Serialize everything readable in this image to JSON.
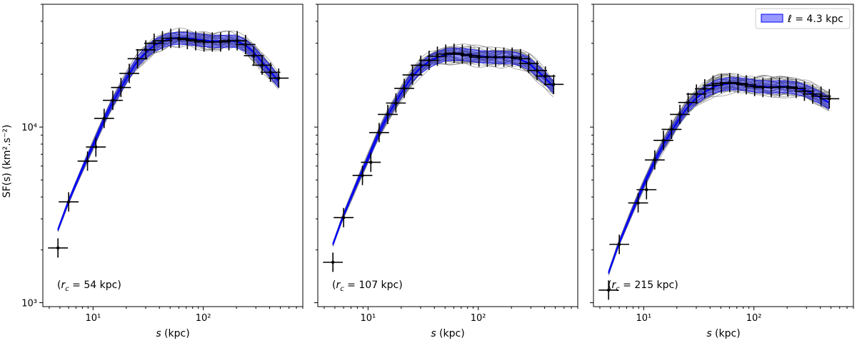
{
  "figure": {
    "ylabel": "SF(s) (km².s⁻²)",
    "legend": {
      "label": "ℓ = 4.3 kpc",
      "color": "#0000ff",
      "location": "top-right"
    },
    "colors": {
      "model": "#0000ff",
      "band": "#0000ff",
      "realizations": "#808080",
      "points": "#000000"
    }
  },
  "chart_data": [
    {
      "type": "line",
      "panel": "left",
      "xscale": "log",
      "yscale": "log",
      "xlim": [
        3.5,
        800
      ],
      "ylim": [
        950,
        50000
      ],
      "xlabel": "s (kpc)",
      "ylabel": "SF(s) (km².s⁻²)",
      "xticks": [
        "10¹",
        "10²"
      ],
      "yticks": [
        "10³",
        "10⁴"
      ],
      "annotation": "(r_c = 54 kpc)",
      "annotation_value": "54 kpc",
      "data_points": {
        "x": [
          4.8,
          6.0,
          8.9,
          10.6,
          12.6,
          15.1,
          17.9,
          21.3,
          25.3,
          30.1,
          35.8,
          42.6,
          50.7,
          60.3,
          71.7,
          85.3,
          101.5,
          120.7,
          143.6,
          170.8,
          203.1,
          241.6,
          287.4,
          341.8,
          406.6,
          483.6
        ],
        "y": [
          2050,
          3750,
          6400,
          7700,
          11200,
          14200,
          16800,
          20200,
          24500,
          27500,
          30000,
          31000,
          32000,
          32000,
          31500,
          31000,
          30500,
          30500,
          30500,
          31000,
          31000,
          29500,
          25500,
          22500,
          20500,
          19000
        ]
      },
      "model": {
        "x": [
          4.8,
          6,
          8,
          10,
          12.6,
          15,
          18,
          21,
          25,
          30,
          36,
          43,
          50,
          60,
          72,
          85,
          100,
          120,
          145,
          170,
          200,
          240,
          290,
          340,
          400,
          480
        ],
        "y": [
          2600,
          3800,
          5800,
          7900,
          11000,
          13800,
          16800,
          19800,
          23500,
          26500,
          29200,
          30800,
          31800,
          32200,
          32000,
          31600,
          31200,
          30800,
          30800,
          31000,
          30800,
          29300,
          26500,
          23500,
          21000,
          18300
        ]
      },
      "band_relative_halfwidth": 0.08,
      "realizations": {
        "count": 40,
        "scatter_dex": 0.045
      }
    },
    {
      "type": "line",
      "panel": "middle",
      "xscale": "log",
      "yscale": "log",
      "xlim": [
        3.5,
        800
      ],
      "ylim": [
        950,
        50000
      ],
      "xlabel": "s (kpc)",
      "ylabel": "",
      "xticks": [
        "10¹",
        "10²"
      ],
      "yticks": [],
      "annotation": "(r_c = 107 kpc)",
      "annotation_value": "107 kpc",
      "data_points": {
        "x": [
          4.8,
          6.0,
          8.9,
          10.6,
          12.6,
          15.1,
          17.9,
          21.3,
          25.3,
          30.1,
          35.8,
          42.6,
          50.7,
          60.3,
          71.7,
          85.3,
          101.5,
          120.7,
          143.6,
          170.8,
          203.1,
          241.6,
          287.4,
          341.8,
          406.6,
          483.6
        ],
        "y": [
          1700,
          3050,
          5300,
          6300,
          9300,
          11800,
          13700,
          16600,
          19800,
          22500,
          24000,
          25300,
          26000,
          26300,
          26000,
          25500,
          25000,
          25000,
          25000,
          25000,
          25000,
          24500,
          23000,
          21000,
          19500,
          17500
        ]
      },
      "model": {
        "x": [
          4.8,
          6,
          8,
          10,
          12.6,
          15,
          18,
          21,
          25,
          30,
          36,
          43,
          50,
          60,
          72,
          85,
          100,
          120,
          145,
          170,
          200,
          240,
          290,
          340,
          400,
          480
        ],
        "y": [
          2150,
          3150,
          4850,
          6650,
          9300,
          11600,
          14000,
          16400,
          19300,
          21800,
          23700,
          25000,
          25800,
          26100,
          26000,
          25700,
          25300,
          25100,
          25000,
          25000,
          24900,
          24300,
          23000,
          21000,
          19200,
          17000
        ]
      },
      "band_relative_halfwidth": 0.08,
      "realizations": {
        "count": 40,
        "scatter_dex": 0.045
      }
    },
    {
      "type": "line",
      "panel": "right",
      "xscale": "log",
      "yscale": "log",
      "xlim": [
        3.5,
        800
      ],
      "ylim": [
        950,
        50000
      ],
      "xlabel": "s (kpc)",
      "ylabel": "",
      "xticks": [
        "10¹",
        "10²"
      ],
      "yticks": [],
      "annotation": "(r_c = 215 kpc)",
      "annotation_value": "215 kpc",
      "data_points": {
        "x": [
          4.8,
          6.0,
          8.9,
          10.6,
          12.6,
          15.1,
          17.9,
          21.3,
          25.3,
          30.1,
          35.8,
          42.6,
          50.7,
          60.3,
          71.7,
          85.3,
          101.5,
          120.7,
          143.6,
          170.8,
          203.1,
          241.6,
          287.4,
          341.8,
          406.6,
          483.6
        ],
        "y": [
          1180,
          2150,
          3700,
          4400,
          6500,
          8400,
          9700,
          11800,
          13800,
          15400,
          16500,
          17300,
          17700,
          17900,
          17700,
          17400,
          17000,
          16800,
          16800,
          16900,
          16900,
          16600,
          16000,
          15400,
          15000,
          14500
        ]
      },
      "model": {
        "x": [
          4.8,
          6,
          8,
          10,
          12.6,
          15,
          18,
          21,
          25,
          30,
          36,
          43,
          50,
          60,
          72,
          85,
          100,
          120,
          145,
          170,
          200,
          240,
          290,
          340,
          400,
          480
        ],
        "y": [
          1480,
          2200,
          3400,
          4700,
          6400,
          7900,
          9500,
          11100,
          13000,
          14600,
          15900,
          16900,
          17400,
          17700,
          17700,
          17500,
          17200,
          17000,
          16900,
          17000,
          17000,
          16700,
          16200,
          15500,
          14700,
          13800
        ]
      },
      "band_relative_halfwidth": 0.08,
      "realizations": {
        "count": 40,
        "scatter_dex": 0.045
      }
    }
  ]
}
